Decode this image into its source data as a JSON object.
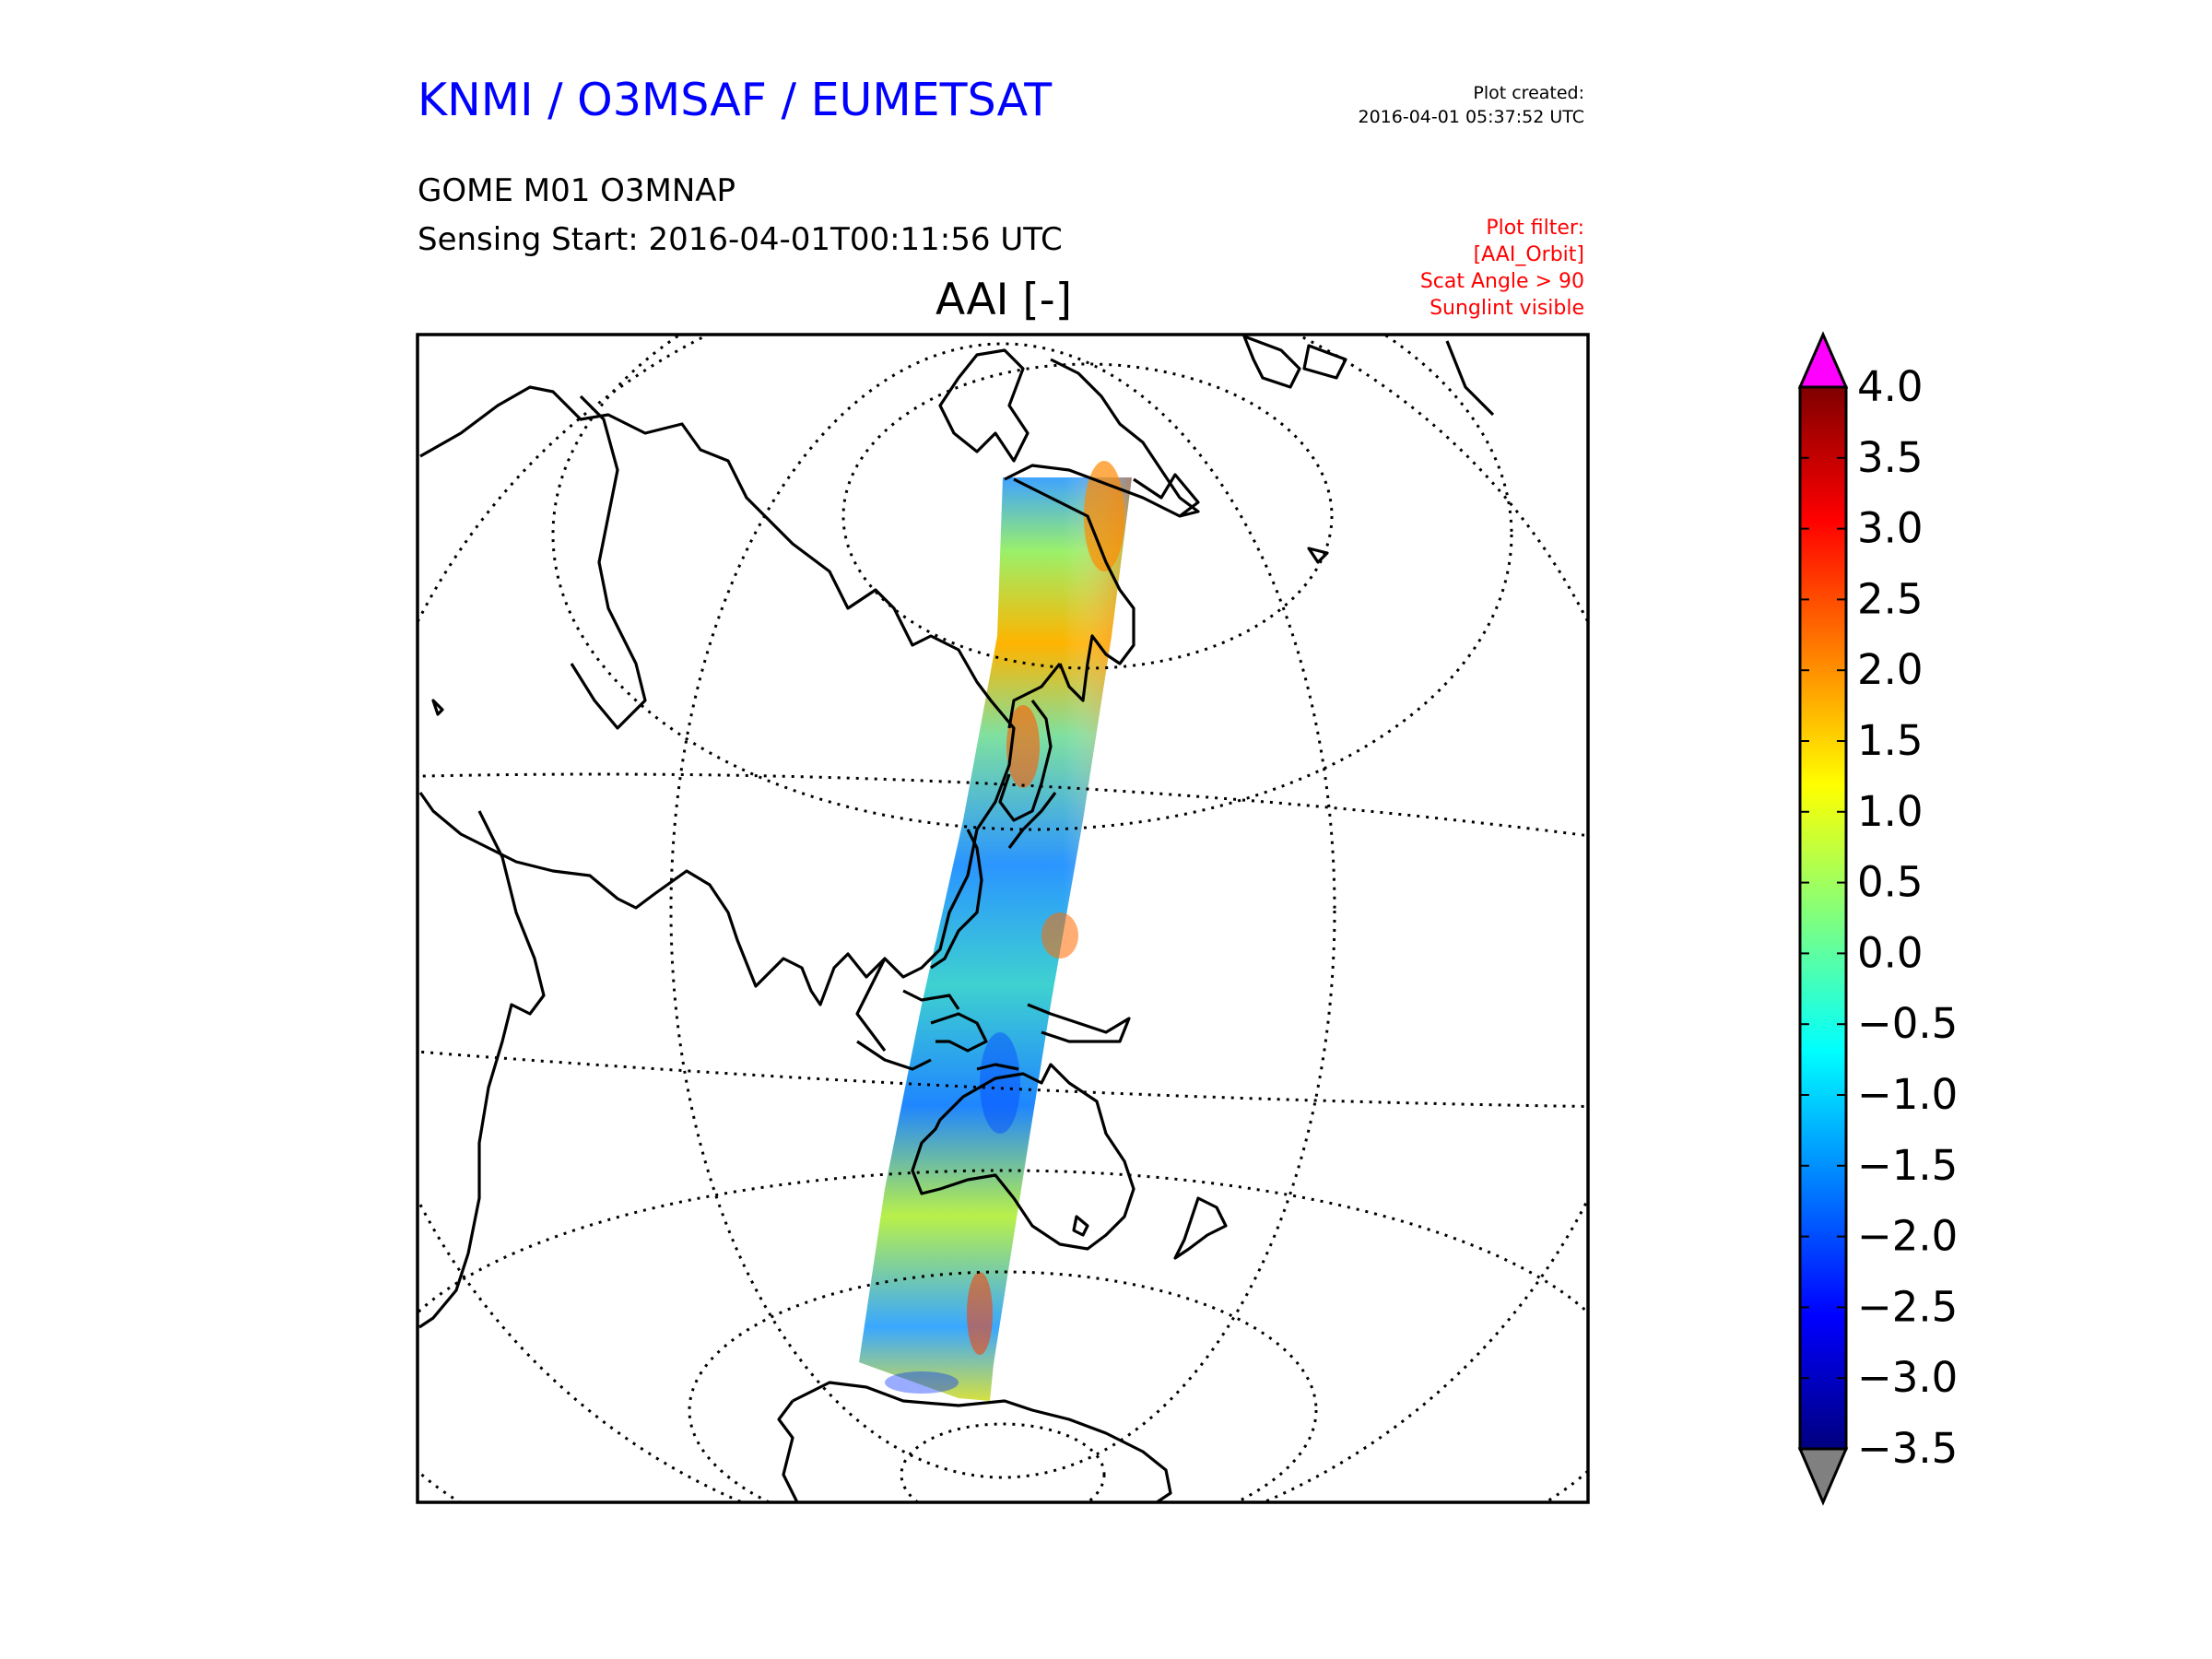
{
  "header": {
    "title": "KNMI / O3MSAF / EUMETSAT",
    "product": "GOME M01 O3MNAP",
    "sensing_start": "Sensing Start: 2016-04-01T00:11:56 UTC",
    "plot_created_label": "Plot created:",
    "plot_created_time": "2016-04-01 05:37:52 UTC"
  },
  "filter": {
    "label": "Plot filter:",
    "items": [
      "[AAI_Orbit]",
      "Scat Angle > 90",
      "Sunglint visible"
    ]
  },
  "map": {
    "title": "AAI [-]",
    "projection": "orthographic, centered on Asia / Western Pacific",
    "graticule": "dotted",
    "coastlines": "black"
  },
  "colorbar": {
    "tick_labels": [
      "4.0",
      "3.5",
      "3.0",
      "2.5",
      "2.0",
      "1.5",
      "1.0",
      "0.5",
      "0.0",
      "−0.5",
      "−1.0",
      "−1.5",
      "−2.0",
      "−2.5",
      "−3.0",
      "−3.5"
    ],
    "min": -3.5,
    "max": 4.0,
    "over_color": "#ff00ff",
    "under_color": "#808080",
    "colormap": "jet",
    "colors": [
      "#00007f",
      "#0000ff",
      "#007fff",
      "#00ffff",
      "#7fff7f",
      "#ffff00",
      "#ff7f00",
      "#ff0000",
      "#7f0000"
    ]
  },
  "colors": {
    "title": "#0000ff",
    "filter_text": "#ff0000"
  }
}
